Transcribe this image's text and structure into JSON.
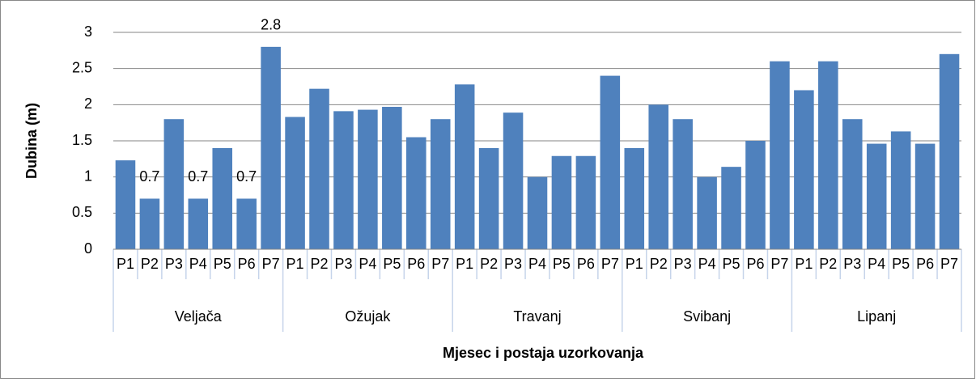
{
  "chart_data": {
    "type": "bar",
    "y_label": "Dubina (m)",
    "x_label": "Mjesec i postaja uzorkovanja",
    "groups": [
      "Veljača",
      "Ožujak",
      "Travanj",
      "Svibanj",
      "Lipanj"
    ],
    "categories": [
      "P1",
      "P2",
      "P3",
      "P4",
      "P5",
      "P6",
      "P7",
      "P1",
      "P2",
      "P3",
      "P4",
      "P5",
      "P6",
      "P7",
      "P1",
      "P2",
      "P3",
      "P4",
      "P5",
      "P6",
      "P7",
      "P1",
      "P2",
      "P3",
      "P4",
      "P5",
      "P6",
      "P7",
      "P1",
      "P2",
      "P3",
      "P4",
      "P5",
      "P6",
      "P7"
    ],
    "values": [
      1.23,
      0.7,
      1.8,
      0.7,
      1.4,
      0.7,
      2.8,
      1.83,
      2.22,
      1.91,
      1.93,
      1.97,
      1.55,
      1.8,
      2.28,
      1.4,
      1.89,
      1.0,
      1.29,
      1.29,
      2.4,
      1.4,
      2.0,
      1.8,
      1.0,
      1.14,
      1.5,
      2.6,
      2.2,
      2.6,
      1.8,
      1.46,
      1.63,
      1.46,
      2.7
    ],
    "value_labels": [
      null,
      "0.7",
      null,
      "0.7",
      null,
      "0.7",
      "2.8",
      null,
      null,
      null,
      null,
      null,
      null,
      null,
      null,
      null,
      null,
      null,
      null,
      null,
      null,
      null,
      null,
      null,
      null,
      null,
      null,
      null,
      null,
      null,
      null,
      null,
      null,
      null,
      null
    ],
    "color": "#4f81bd",
    "ylim": [
      0,
      3
    ],
    "yticks": [
      0,
      0.5,
      1,
      1.5,
      2,
      2.5,
      3
    ],
    "grid": true
  }
}
